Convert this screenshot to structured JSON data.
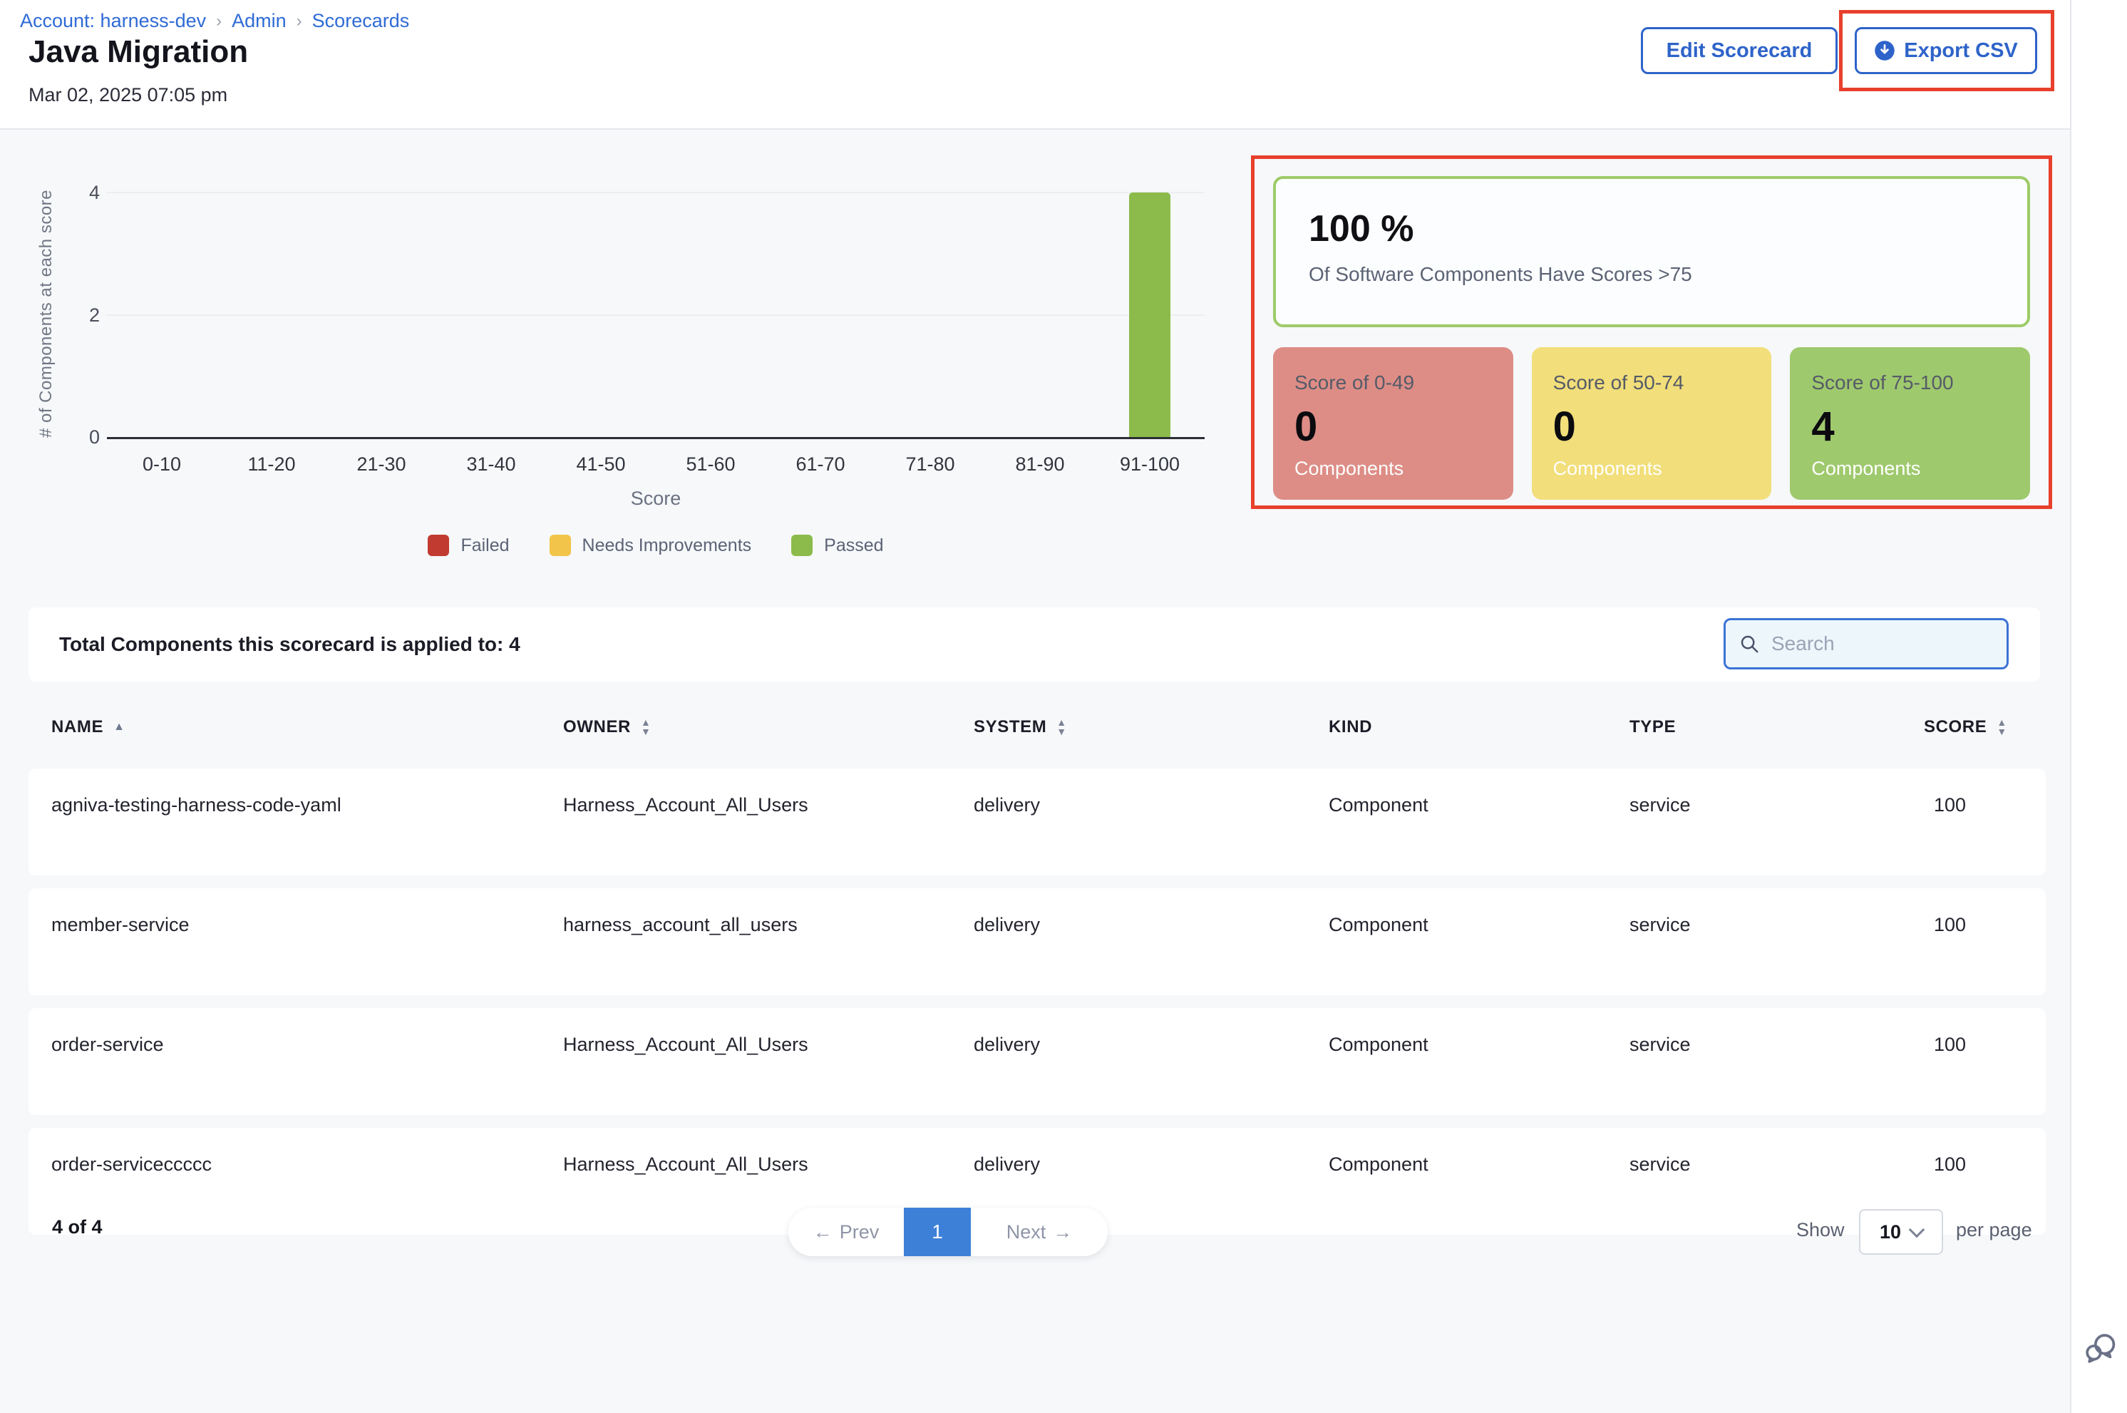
{
  "header": {
    "breadcrumb": [
      {
        "label": "Account: harness-dev"
      },
      {
        "label": "Admin"
      },
      {
        "label": "Scorecards"
      }
    ],
    "separator": "›",
    "title": "Java Migration",
    "timestamp": "Mar 02, 2025 07:05 pm",
    "actions": {
      "edit_label": "Edit Scorecard",
      "export_label": "Export CSV"
    },
    "accent_blue": "#2e63c9",
    "annotation_red": "#e8402c"
  },
  "chart_data": {
    "type": "bar",
    "title": "",
    "categories": [
      "0-10",
      "11-20",
      "21-30",
      "31-40",
      "41-50",
      "51-60",
      "61-70",
      "71-80",
      "81-90",
      "91-100"
    ],
    "series": [
      {
        "name": "Failed",
        "color": "#c23b30",
        "values": [
          0,
          0,
          0,
          0,
          0,
          0,
          0,
          0,
          0,
          0
        ]
      },
      {
        "name": "Needs Improvements",
        "color": "#f2c449",
        "values": [
          0,
          0,
          0,
          0,
          0,
          0,
          0,
          0,
          0,
          0
        ]
      },
      {
        "name": "Passed",
        "color": "#8cbb4b",
        "values": [
          0,
          0,
          0,
          0,
          0,
          0,
          0,
          0,
          0,
          4
        ]
      }
    ],
    "xlabel": "Score",
    "ylabel": "# of Components at each score",
    "ylim": [
      0,
      4
    ],
    "yticks": [
      0,
      2,
      4
    ],
    "grid": true,
    "legend_position": "bottom"
  },
  "summary": {
    "percent": "100 %",
    "percent_caption": "Of Software Components Have Scores >75",
    "percent_border_color": "#9ecb68",
    "buckets": [
      {
        "label": "Score of 0-49",
        "value": "0",
        "caption": "Components",
        "color": "#dd8d86"
      },
      {
        "label": "Score of 50-74",
        "value": "0",
        "caption": "Components",
        "color": "#f2de7a"
      },
      {
        "label": "Score of 75-100",
        "value": "4",
        "caption": "Components",
        "color": "#9fc96d"
      }
    ]
  },
  "table": {
    "summary": "Total Components this scorecard is applied to: 4",
    "search_placeholder": "Search",
    "columns": [
      {
        "label": "NAME",
        "sort": "asc"
      },
      {
        "label": "OWNER",
        "sort": "both"
      },
      {
        "label": "SYSTEM",
        "sort": "both"
      },
      {
        "label": "KIND",
        "sort": "none"
      },
      {
        "label": "TYPE",
        "sort": "none"
      },
      {
        "label": "SCORE",
        "sort": "both"
      }
    ],
    "rows": [
      {
        "name": "agniva-testing-harness-code-yaml",
        "owner": "Harness_Account_All_Users",
        "system": "delivery",
        "kind": "Component",
        "type": "service",
        "score": "100"
      },
      {
        "name": "member-service",
        "owner": "harness_account_all_users",
        "system": "delivery",
        "kind": "Component",
        "type": "service",
        "score": "100"
      },
      {
        "name": "order-service",
        "owner": "Harness_Account_All_Users",
        "system": "delivery",
        "kind": "Component",
        "type": "service",
        "score": "100"
      },
      {
        "name": "order-serviceccccc",
        "owner": "Harness_Account_All_Users",
        "system": "delivery",
        "kind": "Component",
        "type": "service",
        "score": "100"
      }
    ]
  },
  "pagination": {
    "count": "4 of 4",
    "prev_label": "Prev",
    "page": "1",
    "next_label": "Next",
    "show_label": "Show",
    "page_size": "10",
    "per_page_label": "per page"
  }
}
